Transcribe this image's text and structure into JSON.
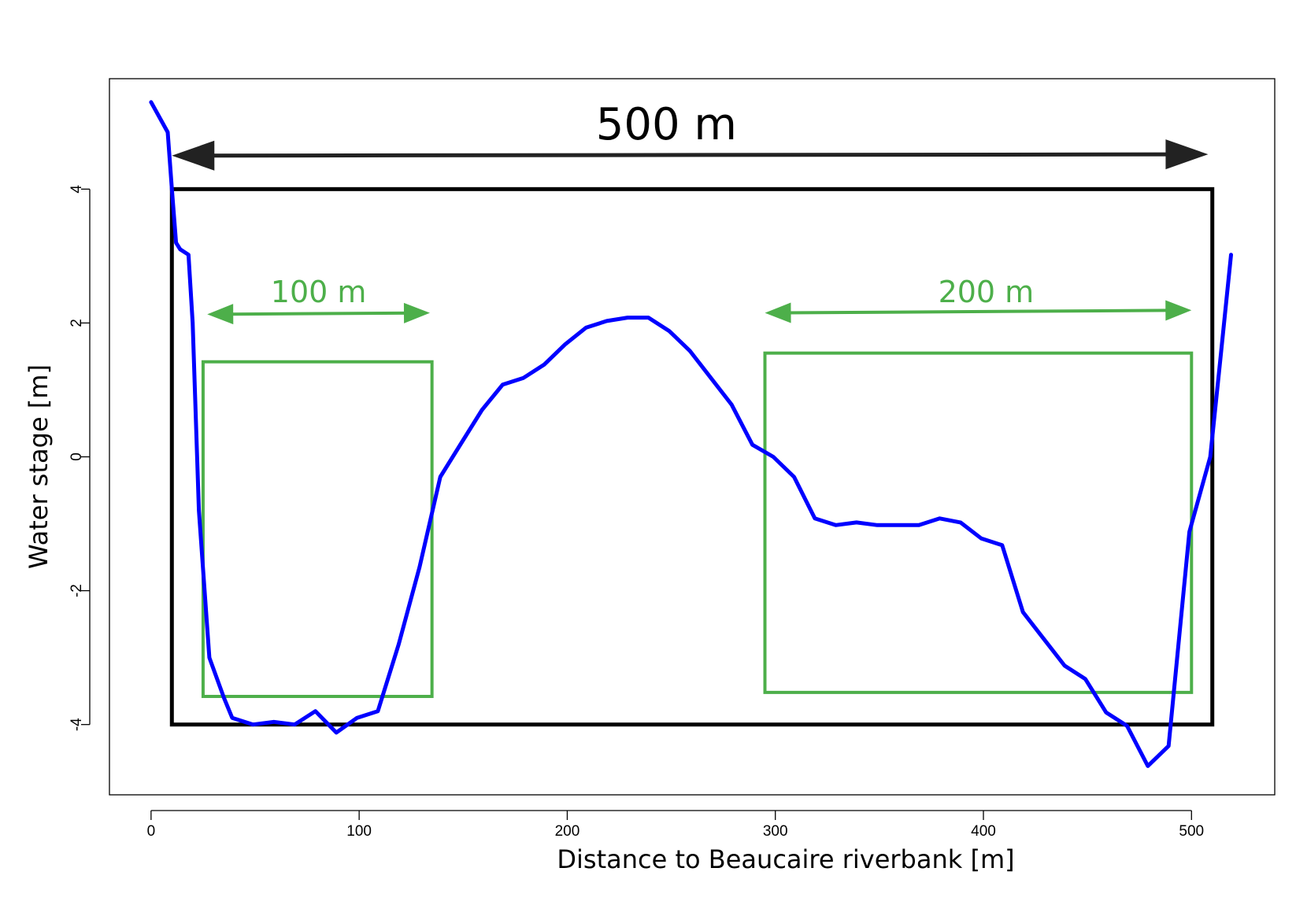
{
  "chart_data": {
    "type": "line",
    "title": "",
    "xlabel": "Distance to Beaucaire riverbank [m]",
    "ylabel": "Water stage [m]",
    "xlim": [
      -20,
      540
    ],
    "ylim": [
      -5.05,
      5.65
    ],
    "xticks": [
      0,
      100,
      200,
      300,
      400,
      500
    ],
    "yticks": [
      -4,
      -2,
      0,
      2,
      4
    ],
    "grid": false,
    "series": [
      {
        "color": "#0000ff",
        "x": [
          0,
          8,
          10,
          12,
          14,
          18,
          20,
          23,
          28,
          35,
          39,
          49,
          59,
          69,
          79,
          89,
          99,
          109,
          119,
          129,
          139,
          149,
          159,
          169,
          179,
          189,
          199,
          209,
          219,
          229,
          239,
          249,
          259,
          269,
          279,
          289,
          299,
          309,
          319,
          329,
          339,
          349,
          359,
          369,
          379,
          389,
          399,
          409,
          419,
          429,
          439,
          449,
          459,
          469,
          479,
          489,
          499,
          509,
          514,
          519
        ],
        "y": [
          5.3,
          4.85,
          4.0,
          3.2,
          3.1,
          3.02,
          2.0,
          -0.8,
          -3.0,
          -3.6,
          -3.9,
          -4.0,
          -3.96,
          -4.0,
          -3.8,
          -4.12,
          -3.9,
          -3.8,
          -2.8,
          -1.65,
          -0.3,
          0.2,
          0.7,
          1.08,
          1.18,
          1.38,
          1.68,
          1.93,
          2.03,
          2.08,
          2.08,
          1.88,
          1.58,
          1.18,
          0.78,
          0.18,
          0.0,
          -0.3,
          -0.92,
          -1.02,
          -0.98,
          -1.02,
          -1.02,
          -1.02,
          -0.92,
          -0.98,
          -1.22,
          -1.32,
          -2.32,
          -2.72,
          -3.12,
          -3.32,
          -3.82,
          -4.02,
          -4.62,
          -4.32,
          -1.12,
          0.0,
          1.5,
          3.02
        ]
      }
    ],
    "annotations": {
      "black_rect": {
        "x": [
          10,
          510
        ],
        "y": [
          -4,
          4
        ]
      },
      "black_arrow": {
        "label": "500 m",
        "x": [
          10,
          508
        ],
        "y": [
          4.5,
          4.52
        ]
      },
      "green_rect_left": {
        "x": [
          25,
          135
        ],
        "y": [
          -3.58,
          1.42
        ]
      },
      "green_arrow_left": {
        "label": "100 m",
        "x": [
          27,
          134
        ],
        "y": [
          2.13,
          2.15
        ]
      },
      "green_rect_right": {
        "x": [
          295,
          500
        ],
        "y": [
          -3.52,
          1.55
        ]
      },
      "green_arrow_right": {
        "label": "200 m",
        "x": [
          295,
          500
        ],
        "y": [
          2.15,
          2.19
        ]
      }
    },
    "colors": {
      "line": "#0000ff",
      "frame": "#000000",
      "green": "#4daf4a",
      "arrow": "#222222"
    }
  }
}
